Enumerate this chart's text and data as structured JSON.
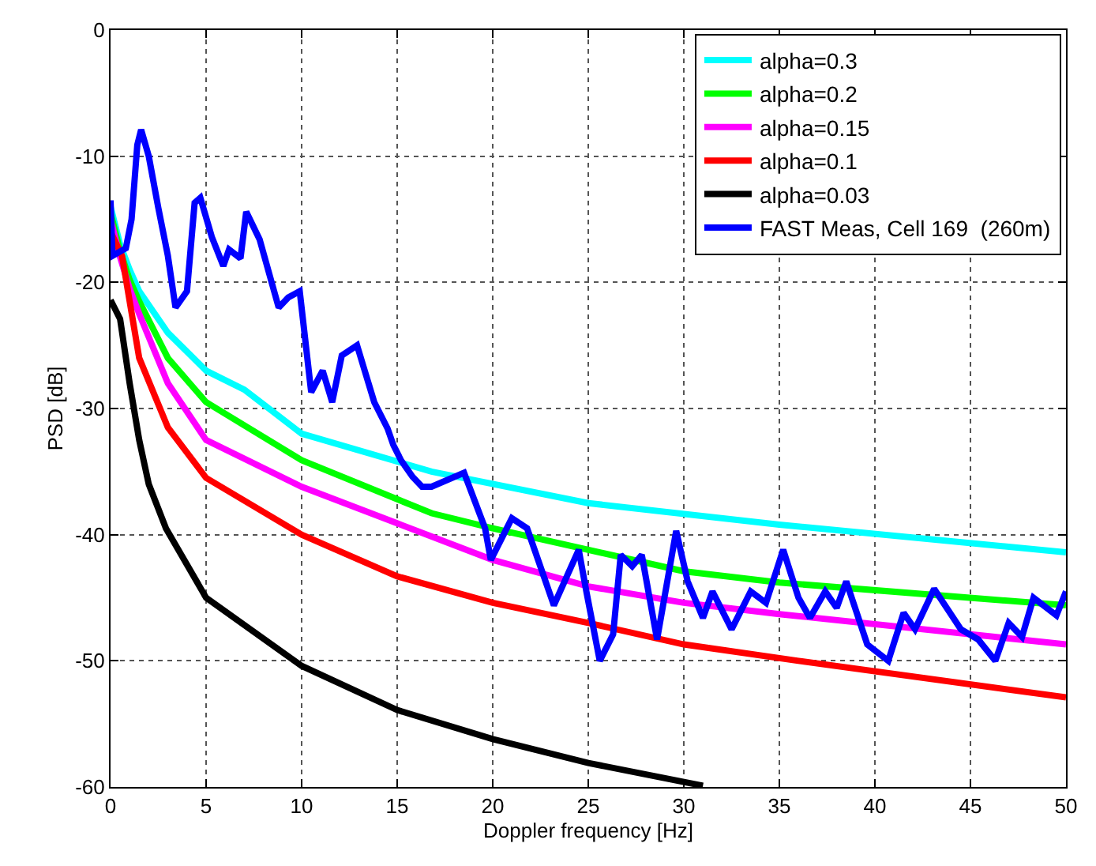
{
  "chart_data": {
    "type": "line",
    "xlabel": "Doppler frequency [Hz]",
    "ylabel": "PSD [dB]",
    "xlim": [
      0,
      50
    ],
    "ylim": [
      -60,
      0
    ],
    "xticks": [
      0,
      5,
      10,
      15,
      20,
      25,
      30,
      35,
      40,
      45,
      50
    ],
    "yticks": [
      -60,
      -50,
      -40,
      -30,
      -20,
      -10,
      0
    ],
    "grid": true,
    "legend": "top right",
    "marker": "none",
    "line_style": "solid",
    "series": [
      {
        "name": "alpha=0.3",
        "color": "#00ffff",
        "x": [
          0,
          0.5,
          1,
          1.5,
          3,
          5,
          7,
          10,
          16.8,
          25,
          35,
          50
        ],
        "values": [
          -14,
          -17,
          -19,
          -20.7,
          -24,
          -27,
          -28.5,
          -32,
          -35,
          -37.5,
          -39.2,
          -41.4
        ]
      },
      {
        "name": "alpha=0.2",
        "color": "#00ff00",
        "x": [
          0,
          0.5,
          1,
          1.5,
          3,
          5,
          10,
          16.8,
          20,
          30,
          35,
          50
        ],
        "values": [
          -14.5,
          -17.5,
          -19.8,
          -21.5,
          -26,
          -29.5,
          -34.1,
          -38.3,
          -39.5,
          -42.9,
          -43.8,
          -45.6
        ]
      },
      {
        "name": "alpha=0.15",
        "color": "#ff00ff",
        "x": [
          0,
          0.5,
          1,
          1.5,
          3,
          5,
          10,
          15,
          20,
          25,
          30,
          35,
          50
        ],
        "values": [
          -15,
          -18,
          -20.5,
          -22.5,
          -28,
          -32.5,
          -36.2,
          -39.1,
          -42,
          -44.1,
          -45.4,
          -46.3,
          -48.7
        ]
      },
      {
        "name": "alpha=0.1",
        "color": "#ff0000",
        "x": [
          0,
          0.6,
          1.5,
          3,
          5,
          10,
          15,
          20,
          25,
          30,
          36,
          50
        ],
        "values": [
          -16,
          -17.9,
          -26,
          -31.5,
          -35.5,
          -40,
          -43.3,
          -45.4,
          -47,
          -48.7,
          -50,
          -52.9
        ]
      },
      {
        "name": "alpha=0.03",
        "color": "#000000",
        "x": [
          0,
          0.5,
          1,
          1.5,
          2,
          2.9,
          5,
          10,
          15,
          20,
          25,
          31
        ],
        "values": [
          -21.4,
          -22.9,
          -28,
          -32.5,
          -36,
          -39.5,
          -45,
          -50.4,
          -53.9,
          -56.2,
          -58.1,
          -59.9
        ]
      },
      {
        "name": "FAST Meas, Cell 169  (260m)",
        "color": "#0000ff",
        "x": [
          0,
          0.1,
          0.8,
          1.1,
          1.4,
          1.6,
          2,
          2.5,
          3,
          3.4,
          4,
          4.4,
          4.7,
          5.3,
          5.9,
          6.2,
          6.8,
          7.1,
          7.8,
          8.8,
          9.3,
          9.9,
          10.5,
          11.1,
          11.6,
          12.1,
          12.9,
          13.3,
          13.8,
          14.5,
          14.8,
          15.2,
          15.8,
          16.3,
          16.8,
          18.5,
          19.6,
          19.9,
          21,
          21.8,
          23.2,
          24.5,
          24.9,
          25.6,
          26.3,
          26.7,
          27.3,
          27.8,
          28.6,
          29.6,
          30.2,
          31,
          31.5,
          32.5,
          33.5,
          34.3,
          35.2,
          36,
          36.6,
          37.4,
          38,
          38.5,
          39.6,
          40.7,
          41.5,
          42.1,
          43.1,
          44.5,
          45.4,
          46.3,
          47,
          47.7,
          48.3,
          49.5,
          50
        ],
        "values": [
          -13.5,
          -17.9,
          -17.3,
          -15,
          -9.1,
          -7.9,
          -10,
          -14.1,
          -17.9,
          -22,
          -20.7,
          -13.7,
          -13.3,
          -16.4,
          -18.7,
          -17.4,
          -18.1,
          -14.4,
          -16.6,
          -22,
          -21.2,
          -20.7,
          -28.7,
          -27,
          -29.5,
          -25.8,
          -25,
          -27,
          -29.5,
          -31.6,
          -32.9,
          -34.1,
          -35.4,
          -36.2,
          -36.2,
          -35.1,
          -39.5,
          -42,
          -38.7,
          -39.5,
          -45.6,
          -41.2,
          -44.5,
          -50,
          -47.9,
          -41.6,
          -42.5,
          -41.6,
          -48.3,
          -39.7,
          -43.7,
          -46.6,
          -44.5,
          -47.5,
          -44.5,
          -45.4,
          -41.2,
          -45,
          -46.6,
          -44.5,
          -45.8,
          -43.7,
          -48.7,
          -50,
          -46.2,
          -47.5,
          -44.3,
          -47.5,
          -48.3,
          -50,
          -47,
          -48.1,
          -45,
          -46.4,
          -44.5
        ]
      }
    ]
  }
}
